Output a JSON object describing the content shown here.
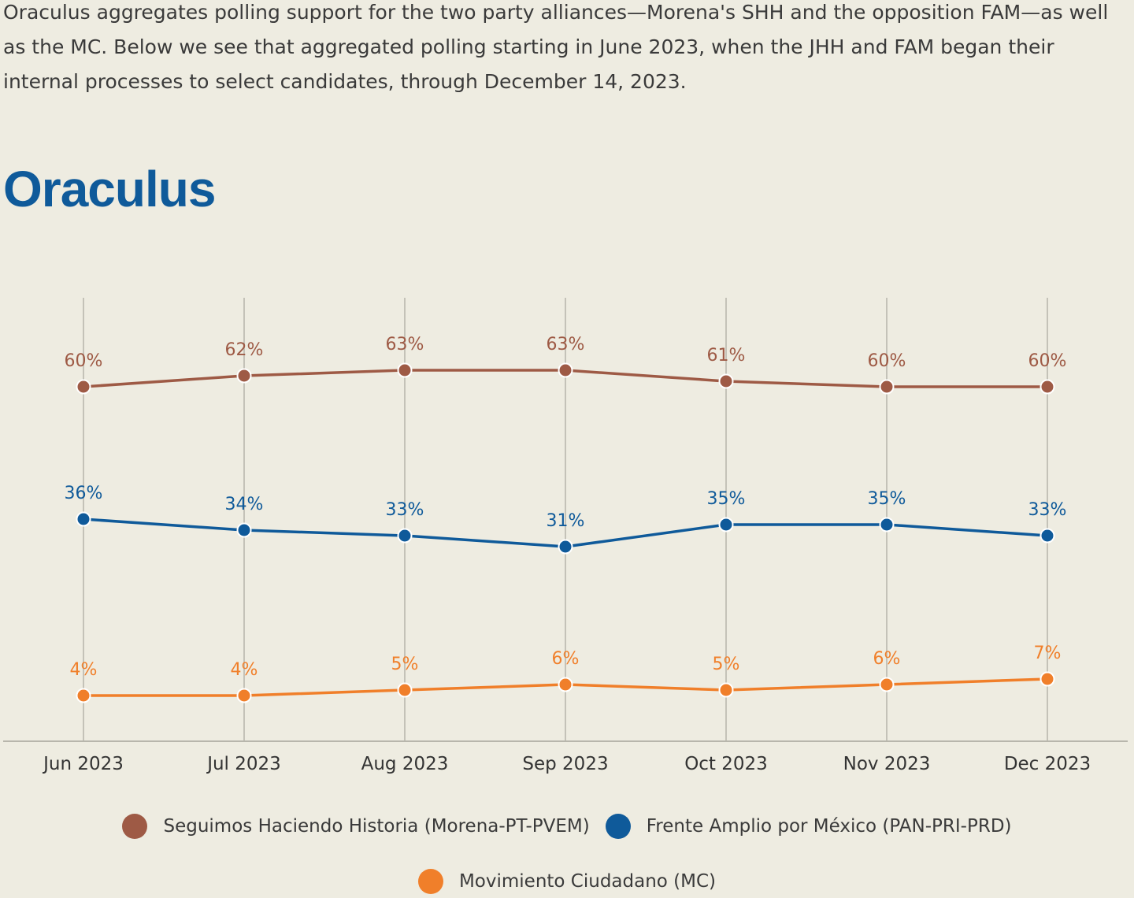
{
  "intro": {
    "line1": "Oraculus aggregates polling support for the two party alliances—Morena's SHH and the opposition FAM—as well",
    "line2": "as the MC. Below we see that aggregated polling starting in June 2023, when the JHH and FAM began their",
    "line3": "internal processes to select candidates, through December 14, 2023."
  },
  "chart_data": {
    "type": "line",
    "title": "Oraculus",
    "categories": [
      "Jun 2023",
      "Jul 2023",
      "Aug 2023",
      "Sep 2023",
      "Oct 2023",
      "Nov 2023",
      "Dec 2023"
    ],
    "ylim": [
      0,
      70
    ],
    "grid": "vertical",
    "legend_placement": "bottom",
    "series": [
      {
        "name": "Seguimos Haciendo Historia (Morena-PT-PVEM)",
        "color": "#9e5a45",
        "values": [
          60,
          62,
          63,
          63,
          61,
          60,
          60
        ],
        "labels": [
          "60%",
          "62%",
          "63%",
          "63%",
          "61%",
          "60%",
          "60%"
        ]
      },
      {
        "name": "Frente Amplio por México (PAN-PRI-PRD)",
        "color": "#0f5a9a",
        "values": [
          36,
          34,
          33,
          31,
          35,
          35,
          33
        ],
        "labels": [
          "36%",
          "34%",
          "33%",
          "31%",
          "35%",
          "35%",
          "33%"
        ]
      },
      {
        "name": "Movimiento Ciudadano (MC)",
        "color": "#f07f2a",
        "values": [
          4,
          4,
          5,
          6,
          5,
          6,
          7
        ],
        "labels": [
          "4%",
          "4%",
          "5%",
          "6%",
          "5%",
          "6%",
          "7%"
        ]
      }
    ]
  }
}
